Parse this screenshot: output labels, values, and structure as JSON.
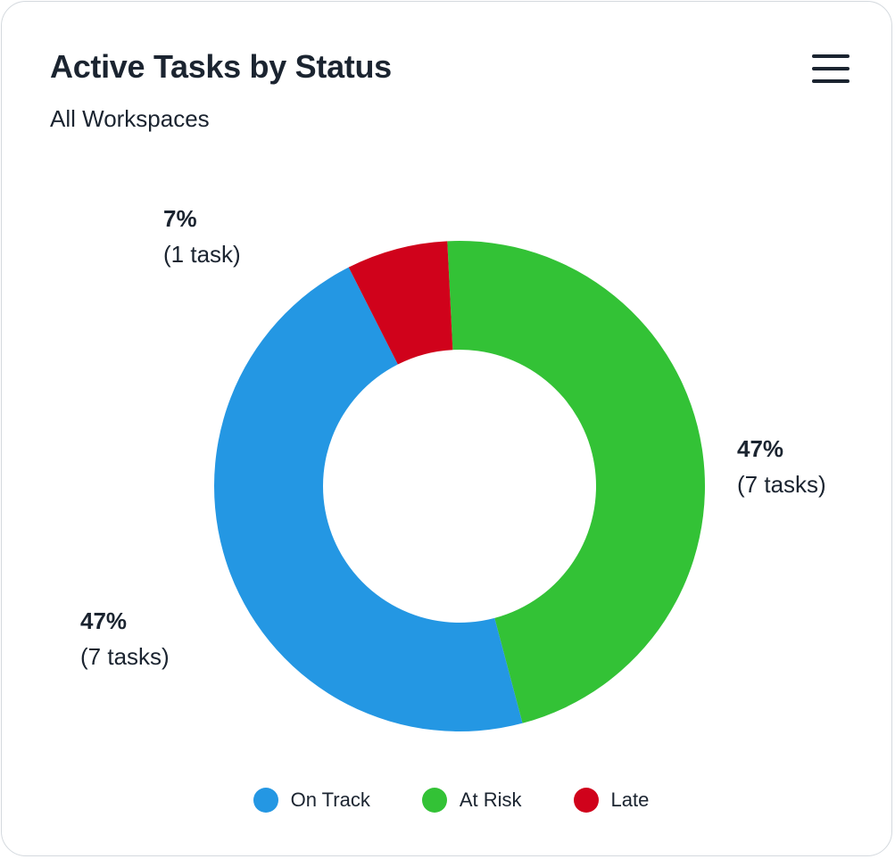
{
  "card": {
    "title": "Active Tasks by Status",
    "subtitle": "All Workspaces",
    "menu_icon": "hamburger-menu-icon"
  },
  "chart_data": {
    "type": "pie",
    "variant": "donut",
    "title": "Active Tasks by Status",
    "subtitle": "All Workspaces",
    "categories": [
      "At Risk",
      "On Track",
      "Late"
    ],
    "values": [
      7,
      7,
      1
    ],
    "labels": [
      {
        "percent": "47%",
        "count": "(7 tasks)"
      },
      {
        "percent": "47%",
        "count": "(7 tasks)"
      },
      {
        "percent": "7%",
        "count": "(1 task)"
      }
    ],
    "colors": [
      "#33c236",
      "#2497e3",
      "#d0021b"
    ],
    "legend": {
      "position": "bottom",
      "items": [
        {
          "label": "On Track",
          "color": "#2497e3"
        },
        {
          "label": "At Risk",
          "color": "#33c236"
        },
        {
          "label": "Late",
          "color": "#d0021b"
        }
      ]
    }
  }
}
